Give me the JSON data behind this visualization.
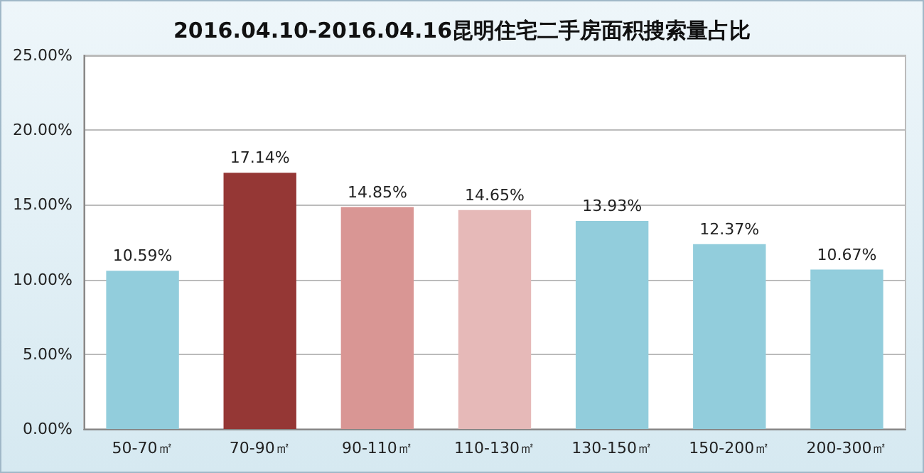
{
  "chart_data": {
    "type": "bar",
    "title": "2016.04.10-2016.04.16昆明住宅二手房面积搜索量占比",
    "categories": [
      "50-70㎡",
      "70-90㎡",
      "90-110㎡",
      "110-130㎡",
      "130-150㎡",
      "150-200㎡",
      "200-300㎡"
    ],
    "values": [
      10.59,
      17.14,
      14.85,
      14.65,
      13.93,
      12.37,
      10.67
    ],
    "colors": [
      "#92cddc",
      "#953735",
      "#d99694",
      "#e6b9b8",
      "#92cddc",
      "#92cddc",
      "#92cddc"
    ],
    "value_labels": [
      "10.59%",
      "17.14%",
      "14.85%",
      "14.65%",
      "13.93%",
      "12.37%",
      "10.67%"
    ],
    "ylim": [
      0,
      25
    ],
    "yticks": [
      {
        "value": 0,
        "label": "0.00%"
      },
      {
        "value": 5,
        "label": "5.00%"
      },
      {
        "value": 10,
        "label": "10.00%"
      },
      {
        "value": 15,
        "label": "15.00%"
      },
      {
        "value": 20,
        "label": "20.00%"
      },
      {
        "value": 25,
        "label": "25.00%"
      }
    ],
    "grid": "y"
  }
}
